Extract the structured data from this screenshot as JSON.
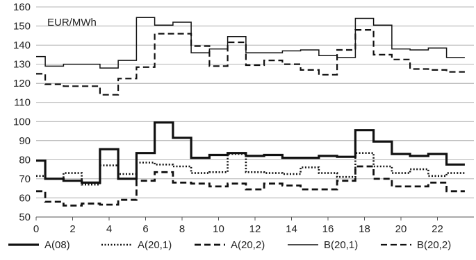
{
  "chart_data": {
    "type": "line",
    "unit_label": "EUR/MWh",
    "ylim": [
      50,
      160
    ],
    "yticks": [
      50,
      60,
      70,
      80,
      90,
      100,
      110,
      120,
      130,
      140,
      150,
      160
    ],
    "xlim": [
      0,
      24
    ],
    "xticks": [
      0,
      2,
      4,
      6,
      8,
      10,
      12,
      14,
      16,
      18,
      20,
      22
    ],
    "grid": "horizontal",
    "legend_position": "bottom",
    "series": [
      {
        "name": "A(08)",
        "style": "thick-solid",
        "values": [
          79.5,
          70,
          69,
          68,
          85.5,
          70,
          83.5,
          99.5,
          91.5,
          81,
          82.5,
          83.5,
          82,
          82.5,
          81,
          81,
          82,
          81.5,
          95.5,
          89.5,
          83,
          82,
          83,
          77.5
        ]
      },
      {
        "name": "A(20,1)",
        "style": "dotted",
        "values": [
          71.5,
          70,
          73,
          67,
          77,
          72.5,
          78.5,
          77.5,
          76.5,
          73,
          73.5,
          83,
          73.5,
          73,
          72.5,
          76,
          73,
          71,
          83.5,
          76.5,
          73,
          75,
          71.5,
          73
        ]
      },
      {
        "name": "A(20,2)",
        "style": "dashed",
        "values": [
          63.5,
          58,
          56,
          57,
          56.5,
          59,
          69,
          73.5,
          68,
          67.5,
          66,
          67.5,
          64.5,
          67.5,
          66.5,
          64.5,
          64.5,
          69,
          76.5,
          70,
          66,
          66,
          68,
          63.5
        ]
      },
      {
        "name": "B(20,1)",
        "style": "thin-solid",
        "values": [
          134,
          129,
          130,
          130,
          128,
          132,
          154.5,
          150.5,
          152,
          136,
          138,
          144.5,
          136,
          136,
          137,
          137.5,
          134.5,
          133.5,
          154,
          150.5,
          138,
          137.5,
          138.5,
          133.5
        ]
      },
      {
        "name": "B(20,2)",
        "style": "dashed-thin",
        "values": [
          125,
          119.5,
          118.5,
          118.5,
          114,
          122.5,
          128.5,
          146,
          146,
          139.5,
          129,
          141.5,
          129.5,
          132,
          130,
          127,
          124.5,
          137.5,
          148,
          135,
          132.5,
          127.5,
          127,
          126
        ]
      }
    ]
  }
}
